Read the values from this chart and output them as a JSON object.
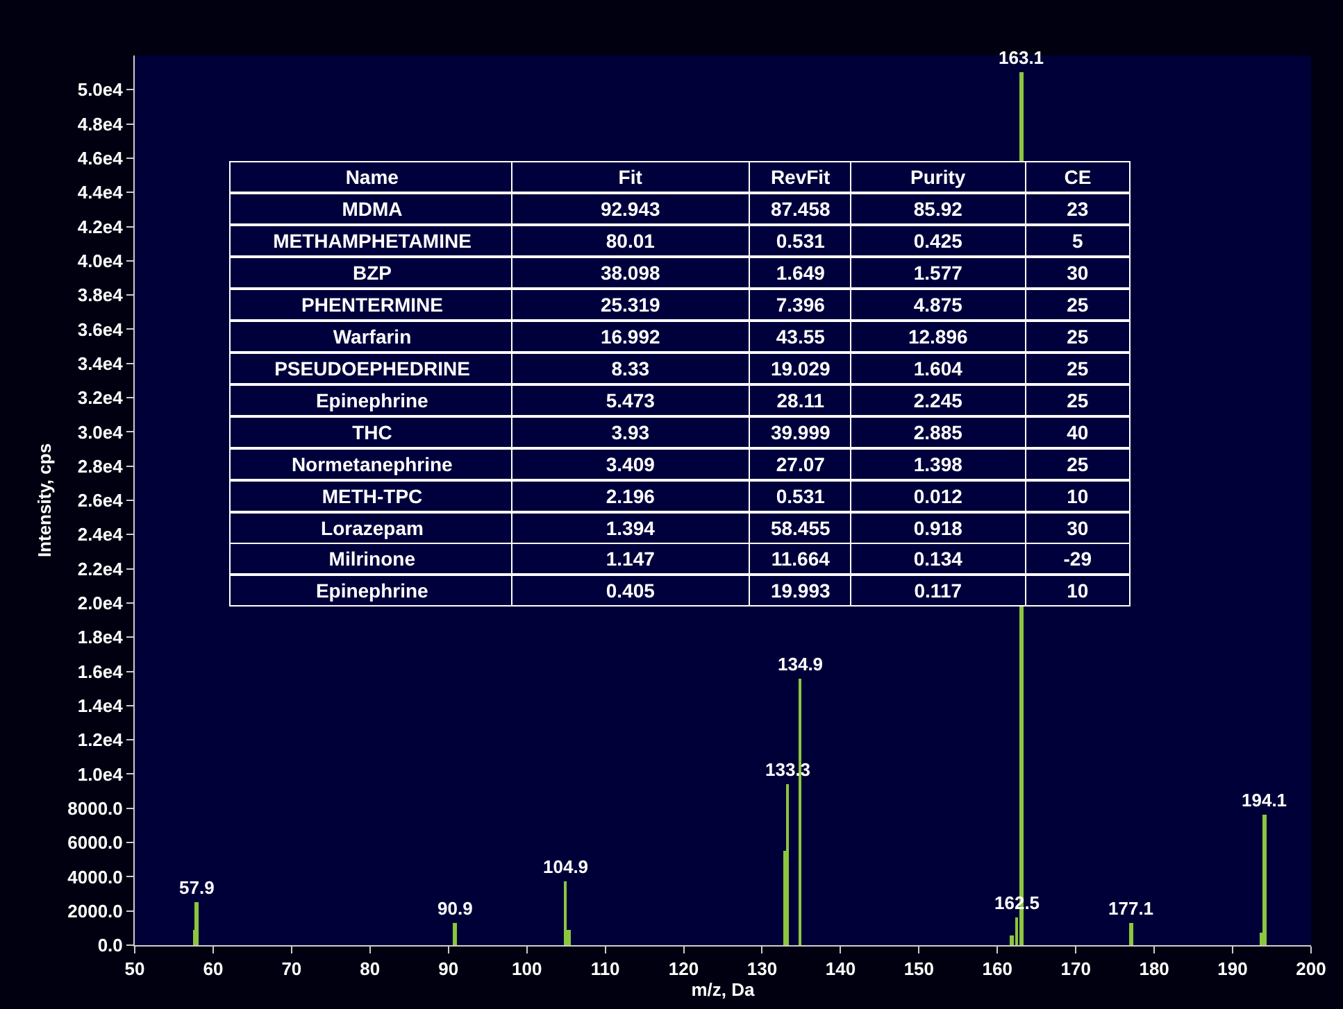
{
  "chart_data": [
    {
      "type": "bar",
      "xlabel": "m/z, Da",
      "ylabel": "Intensity, cps",
      "x": [
        57.7,
        57.9,
        90.9,
        104.9,
        105.4,
        132.9,
        133.3,
        134.9,
        161.9,
        162.5,
        163.1,
        177.1,
        193.7,
        194.1
      ],
      "values": [
        900,
        2500,
        1300,
        3700,
        900,
        5500,
        9400,
        15600,
        600,
        1600,
        51000,
        1300,
        700,
        7600
      ],
      "annotations": [
        {
          "text": "57.9",
          "x": 57.9,
          "y": 2500
        },
        {
          "text": "90.9",
          "x": 90.9,
          "y": 1300
        },
        {
          "text": "104.9",
          "x": 104.9,
          "y": 3700
        },
        {
          "text": "133.3",
          "x": 133.3,
          "y": 9400
        },
        {
          "text": "134.9",
          "x": 134.9,
          "y": 15600
        },
        {
          "text": "162.5",
          "x": 162.5,
          "y": 1600
        },
        {
          "text": "163.1",
          "x": 163.1,
          "y": 51000
        },
        {
          "text": "177.1",
          "x": 177.1,
          "y": 1300
        },
        {
          "text": "194.1",
          "x": 194.1,
          "y": 7600
        }
      ],
      "color": "#8cc63f",
      "xlim": [
        50,
        200
      ],
      "xticks": [
        50,
        60,
        70,
        80,
        90,
        100,
        110,
        120,
        130,
        140,
        150,
        160,
        170,
        180,
        190,
        200
      ],
      "ylim": [
        0,
        52000
      ],
      "yticks": [
        {
          "value": 0,
          "label": "0.0"
        },
        {
          "value": 2000,
          "label": "2000.0"
        },
        {
          "value": 4000,
          "label": "4000.0"
        },
        {
          "value": 6000,
          "label": "6000.0"
        },
        {
          "value": 8000,
          "label": "8000.0"
        },
        {
          "value": 10000,
          "label": "1.0e4"
        },
        {
          "value": 12000,
          "label": "1.2e4"
        },
        {
          "value": 14000,
          "label": "1.4e4"
        },
        {
          "value": 16000,
          "label": "1.6e4"
        },
        {
          "value": 18000,
          "label": "1.8e4"
        },
        {
          "value": 20000,
          "label": "2.0e4"
        },
        {
          "value": 22000,
          "label": "2.2e4"
        },
        {
          "value": 24000,
          "label": "2.4e4"
        },
        {
          "value": 26000,
          "label": "2.6e4"
        },
        {
          "value": 28000,
          "label": "2.8e4"
        },
        {
          "value": 30000,
          "label": "3.0e4"
        },
        {
          "value": 32000,
          "label": "3.2e4"
        },
        {
          "value": 34000,
          "label": "3.4e4"
        },
        {
          "value": 36000,
          "label": "3.6e4"
        },
        {
          "value": 38000,
          "label": "3.8e4"
        },
        {
          "value": 40000,
          "label": "4.0e4"
        },
        {
          "value": 42000,
          "label": "4.2e4"
        },
        {
          "value": 44000,
          "label": "4.4e4"
        },
        {
          "value": 46000,
          "label": "4.6e4"
        },
        {
          "value": 48000,
          "label": "4.8e4"
        },
        {
          "value": 50000,
          "label": "5.0e4"
        }
      ],
      "grid": false,
      "legend": false
    },
    {
      "type": "other",
      "categories": [
        "Name",
        "Fit",
        "RevFit",
        "Purity",
        "CE"
      ],
      "y_categories": [
        "MDMA",
        "METHAMPHETAMINE",
        "BZP",
        "PHENTERMINE",
        "Warfarin",
        "PSEUDOEPHEDRINE",
        "Epinephrine",
        "THC",
        "Normetanephrine",
        "METH-TPC",
        "Lorazepam",
        "Milrinone",
        "Epinephrine"
      ],
      "cell_labels": [
        [
          "92.943",
          "87.458",
          "85.92",
          "23"
        ],
        [
          "80.01",
          "0.531",
          "0.425",
          "5"
        ],
        [
          "38.098",
          "1.649",
          "1.577",
          "30"
        ],
        [
          "25.319",
          "7.396",
          "4.875",
          "25"
        ],
        [
          "16.992",
          "43.55",
          "12.896",
          "25"
        ],
        [
          "8.33",
          "19.029",
          "1.604",
          "25"
        ],
        [
          "5.473",
          "28.11",
          "2.245",
          "25"
        ],
        [
          "3.93",
          "39.999",
          "2.885",
          "40"
        ],
        [
          "3.409",
          "27.07",
          "1.398",
          "25"
        ],
        [
          "2.196",
          "0.531",
          "0.012",
          "10"
        ],
        [
          "1.394",
          "58.455",
          "0.918",
          "30"
        ],
        [
          "1.147",
          "11.664",
          "0.134",
          "-29"
        ],
        [
          "0.405",
          "19.993",
          "0.117",
          "10"
        ]
      ]
    }
  ]
}
